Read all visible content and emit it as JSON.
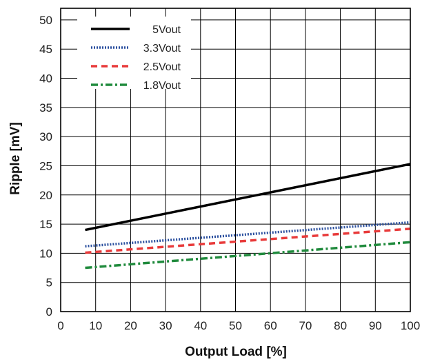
{
  "chart_data": {
    "type": "line",
    "xlabel": "Output Load [%]",
    "ylabel": "Ripple [mV]",
    "xlim": [
      0,
      100
    ],
    "ylim": [
      0,
      52
    ],
    "xticks": [
      0,
      10,
      20,
      30,
      40,
      50,
      60,
      70,
      80,
      90,
      100
    ],
    "yticks": [
      0,
      5,
      10,
      15,
      20,
      25,
      30,
      35,
      40,
      45,
      50
    ],
    "grid": true,
    "legend_position": "top-left",
    "series": [
      {
        "name": "5Vout",
        "color": "#000000",
        "style": "solid",
        "x": [
          7,
          100
        ],
        "y": [
          14.0,
          25.3
        ]
      },
      {
        "name": "3.3Vout",
        "color": "#2a4f9e",
        "style": "dotted",
        "x": [
          7,
          100
        ],
        "y": [
          11.2,
          15.3
        ]
      },
      {
        "name": "2.5Vout",
        "color": "#e83a3a",
        "style": "dashed",
        "x": [
          7,
          100
        ],
        "y": [
          10.1,
          14.2
        ]
      },
      {
        "name": "1.8Vout",
        "color": "#1f8a3c",
        "style": "dashdot",
        "x": [
          7,
          100
        ],
        "y": [
          7.5,
          11.9
        ]
      }
    ]
  }
}
